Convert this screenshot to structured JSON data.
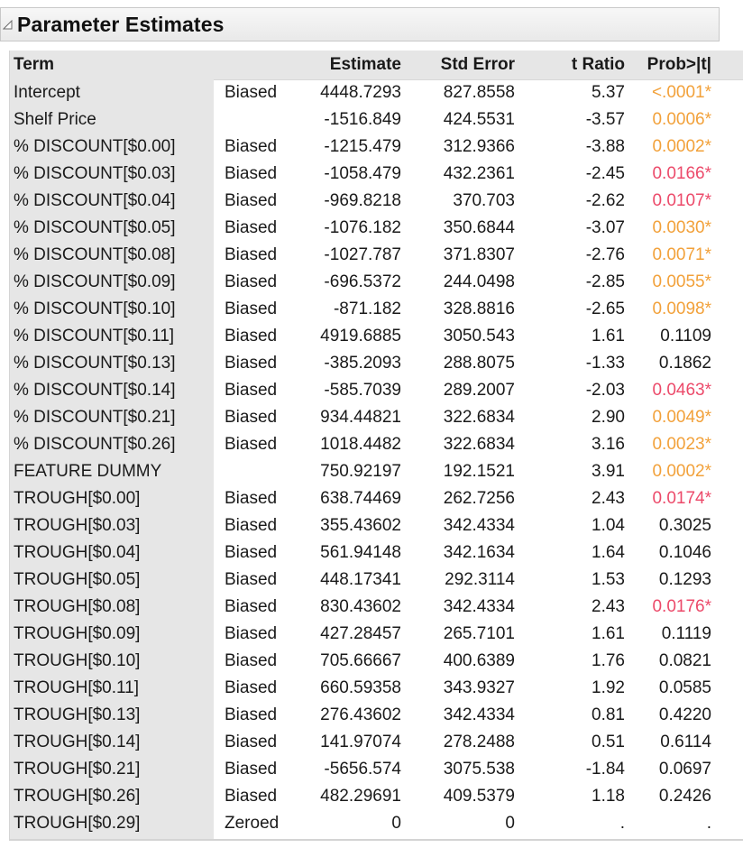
{
  "panel": {
    "title": "Parameter Estimates",
    "disclosure_icon": "triangle-down-icon"
  },
  "columns": {
    "term": "Term",
    "flag": "",
    "estimate": "Estimate",
    "std_error": "Std Error",
    "t_ratio": "t Ratio",
    "prob": "Prob>|t|"
  },
  "colors": {
    "sig_001": "#f2a13a",
    "sig_005": "#ec4a6a",
    "header_bg": "#e6e6e6"
  },
  "rows": [
    {
      "term": "Intercept",
      "flag": "Biased",
      "estimate": "4448.7293",
      "std_error": "827.8558",
      "t_ratio": "5.37",
      "prob": "<.0001*",
      "sig": "orange"
    },
    {
      "term": "Shelf Price",
      "flag": "",
      "estimate": "-1516.849",
      "std_error": "424.5531",
      "t_ratio": "-3.57",
      "prob": "0.0006*",
      "sig": "orange"
    },
    {
      "term": "% DISCOUNT[$0.00]",
      "flag": "Biased",
      "estimate": "-1215.479",
      "std_error": "312.9366",
      "t_ratio": "-3.88",
      "prob": "0.0002*",
      "sig": "orange"
    },
    {
      "term": "% DISCOUNT[$0.03]",
      "flag": "Biased",
      "estimate": "-1058.479",
      "std_error": "432.2361",
      "t_ratio": "-2.45",
      "prob": "0.0166*",
      "sig": "red"
    },
    {
      "term": "% DISCOUNT[$0.04]",
      "flag": "Biased",
      "estimate": "-969.8218",
      "std_error": "370.703",
      "t_ratio": "-2.62",
      "prob": "0.0107*",
      "sig": "red"
    },
    {
      "term": "% DISCOUNT[$0.05]",
      "flag": "Biased",
      "estimate": "-1076.182",
      "std_error": "350.6844",
      "t_ratio": "-3.07",
      "prob": "0.0030*",
      "sig": "orange"
    },
    {
      "term": "% DISCOUNT[$0.08]",
      "flag": "Biased",
      "estimate": "-1027.787",
      "std_error": "371.8307",
      "t_ratio": "-2.76",
      "prob": "0.0071*",
      "sig": "orange"
    },
    {
      "term": "% DISCOUNT[$0.09]",
      "flag": "Biased",
      "estimate": "-696.5372",
      "std_error": "244.0498",
      "t_ratio": "-2.85",
      "prob": "0.0055*",
      "sig": "orange"
    },
    {
      "term": "% DISCOUNT[$0.10]",
      "flag": "Biased",
      "estimate": "-871.182",
      "std_error": "328.8816",
      "t_ratio": "-2.65",
      "prob": "0.0098*",
      "sig": "orange"
    },
    {
      "term": "% DISCOUNT[$0.11]",
      "flag": "Biased",
      "estimate": "4919.6885",
      "std_error": "3050.543",
      "t_ratio": "1.61",
      "prob": "0.1109",
      "sig": "none"
    },
    {
      "term": "% DISCOUNT[$0.13]",
      "flag": "Biased",
      "estimate": "-385.2093",
      "std_error": "288.8075",
      "t_ratio": "-1.33",
      "prob": "0.1862",
      "sig": "none"
    },
    {
      "term": "% DISCOUNT[$0.14]",
      "flag": "Biased",
      "estimate": "-585.7039",
      "std_error": "289.2007",
      "t_ratio": "-2.03",
      "prob": "0.0463*",
      "sig": "red"
    },
    {
      "term": "% DISCOUNT[$0.21]",
      "flag": "Biased",
      "estimate": "934.44821",
      "std_error": "322.6834",
      "t_ratio": "2.90",
      "prob": "0.0049*",
      "sig": "orange"
    },
    {
      "term": "% DISCOUNT[$0.26]",
      "flag": "Biased",
      "estimate": "1018.4482",
      "std_error": "322.6834",
      "t_ratio": "3.16",
      "prob": "0.0023*",
      "sig": "orange"
    },
    {
      "term": "FEATURE DUMMY",
      "flag": "",
      "estimate": "750.92197",
      "std_error": "192.1521",
      "t_ratio": "3.91",
      "prob": "0.0002*",
      "sig": "orange"
    },
    {
      "term": "TROUGH[$0.00]",
      "flag": "Biased",
      "estimate": "638.74469",
      "std_error": "262.7256",
      "t_ratio": "2.43",
      "prob": "0.0174*",
      "sig": "red"
    },
    {
      "term": "TROUGH[$0.03]",
      "flag": "Biased",
      "estimate": "355.43602",
      "std_error": "342.4334",
      "t_ratio": "1.04",
      "prob": "0.3025",
      "sig": "none"
    },
    {
      "term": "TROUGH[$0.04]",
      "flag": "Biased",
      "estimate": "561.94148",
      "std_error": "342.1634",
      "t_ratio": "1.64",
      "prob": "0.1046",
      "sig": "none"
    },
    {
      "term": "TROUGH[$0.05]",
      "flag": "Biased",
      "estimate": "448.17341",
      "std_error": "292.3114",
      "t_ratio": "1.53",
      "prob": "0.1293",
      "sig": "none"
    },
    {
      "term": "TROUGH[$0.08]",
      "flag": "Biased",
      "estimate": "830.43602",
      "std_error": "342.4334",
      "t_ratio": "2.43",
      "prob": "0.0176*",
      "sig": "red"
    },
    {
      "term": "TROUGH[$0.09]",
      "flag": "Biased",
      "estimate": "427.28457",
      "std_error": "265.7101",
      "t_ratio": "1.61",
      "prob": "0.1119",
      "sig": "none"
    },
    {
      "term": "TROUGH[$0.10]",
      "flag": "Biased",
      "estimate": "705.66667",
      "std_error": "400.6389",
      "t_ratio": "1.76",
      "prob": "0.0821",
      "sig": "none"
    },
    {
      "term": "TROUGH[$0.11]",
      "flag": "Biased",
      "estimate": "660.59358",
      "std_error": "343.9327",
      "t_ratio": "1.92",
      "prob": "0.0585",
      "sig": "none"
    },
    {
      "term": "TROUGH[$0.13]",
      "flag": "Biased",
      "estimate": "276.43602",
      "std_error": "342.4334",
      "t_ratio": "0.81",
      "prob": "0.4220",
      "sig": "none"
    },
    {
      "term": "TROUGH[$0.14]",
      "flag": "Biased",
      "estimate": "141.97074",
      "std_error": "278.2488",
      "t_ratio": "0.51",
      "prob": "0.6114",
      "sig": "none"
    },
    {
      "term": "TROUGH[$0.21]",
      "flag": "Biased",
      "estimate": "-5656.574",
      "std_error": "3075.538",
      "t_ratio": "-1.84",
      "prob": "0.0697",
      "sig": "none"
    },
    {
      "term": "TROUGH[$0.26]",
      "flag": "Biased",
      "estimate": "482.29691",
      "std_error": "409.5379",
      "t_ratio": "1.18",
      "prob": "0.2426",
      "sig": "none"
    },
    {
      "term": "TROUGH[$0.29]",
      "flag": "Zeroed",
      "estimate": "0",
      "std_error": "0",
      "t_ratio": ".",
      "prob": ".",
      "sig": "none"
    }
  ]
}
